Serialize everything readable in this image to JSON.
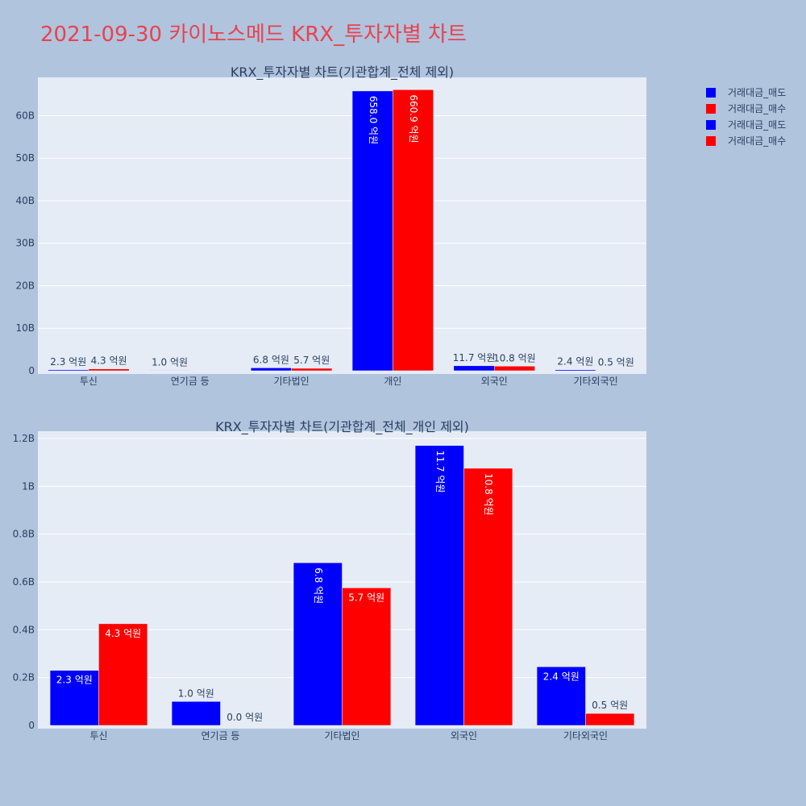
{
  "page_title": "2021-09-30 카이노스메드 KRX_투자자별 차트",
  "legend": [
    {
      "label": "거래대금_매도",
      "color": "#0000ff"
    },
    {
      "label": "거래대금_매수",
      "color": "#ff0000"
    },
    {
      "label": "거래대금_매도",
      "color": "#0000ff"
    },
    {
      "label": "거래대금_매수",
      "color": "#ff0000"
    }
  ],
  "chart_data": [
    {
      "type": "bar",
      "title": "KRX_투자자별 차트(기관합계_전체 제외)",
      "categories": [
        "투신",
        "연기금 등",
        "기타법인",
        "개인",
        "외국인",
        "기타외국인"
      ],
      "ylim": [
        0,
        69000000000
      ],
      "yticks": [
        0,
        10000000000,
        20000000000,
        30000000000,
        40000000000,
        50000000000,
        60000000000
      ],
      "ytick_labels": [
        "0",
        "10B",
        "20B",
        "30B",
        "40B",
        "50B",
        "60B"
      ],
      "series": [
        {
          "name": "거래대금_매도",
          "color": "#0000ff",
          "values": [
            230000000,
            100000000,
            680000000,
            65800000000,
            1170000000,
            240000000
          ],
          "labels": [
            "2.3 억원",
            "1.0 억원",
            "6.8 억원",
            "658.0 억원",
            "11.7 억원",
            "2.4 억원"
          ]
        },
        {
          "name": "거래대금_매수",
          "color": "#ff0000",
          "values": [
            430000000,
            0,
            570000000,
            66090000000,
            1080000000,
            50000000
          ],
          "labels": [
            "4.3 억원",
            "",
            "5.7 억원",
            "660.9 억원",
            "10.8 억원",
            "0.5 억원"
          ]
        }
      ]
    },
    {
      "type": "bar",
      "title": "KRX_투자자별 차트(기관합계_전체_개인 제외)",
      "categories": [
        "투신",
        "연기금 등",
        "기타법인",
        "외국인",
        "기타외국인"
      ],
      "ylim": [
        0,
        1230000000
      ],
      "yticks": [
        0,
        200000000,
        400000000,
        600000000,
        800000000,
        1000000000,
        1200000000
      ],
      "ytick_labels": [
        "0",
        "0.2B",
        "0.4B",
        "0.6B",
        "0.8B",
        "1B",
        "1.2B"
      ],
      "series": [
        {
          "name": "거래대금_매도",
          "color": "#0000ff",
          "values": [
            230000000,
            100000000,
            680000000,
            1170000000,
            245000000
          ],
          "labels": [
            "2.3 억원",
            "1.0 억원",
            "6.8 억원",
            "11.7 억원",
            "2.4 억원"
          ]
        },
        {
          "name": "거래대금_매수",
          "color": "#ff0000",
          "values": [
            425000000,
            0,
            575000000,
            1075000000,
            50000000
          ],
          "labels": [
            "4.3 억원",
            "0.0 억원",
            "5.7 억원",
            "10.8 억원",
            "0.5 억원"
          ]
        }
      ]
    }
  ]
}
